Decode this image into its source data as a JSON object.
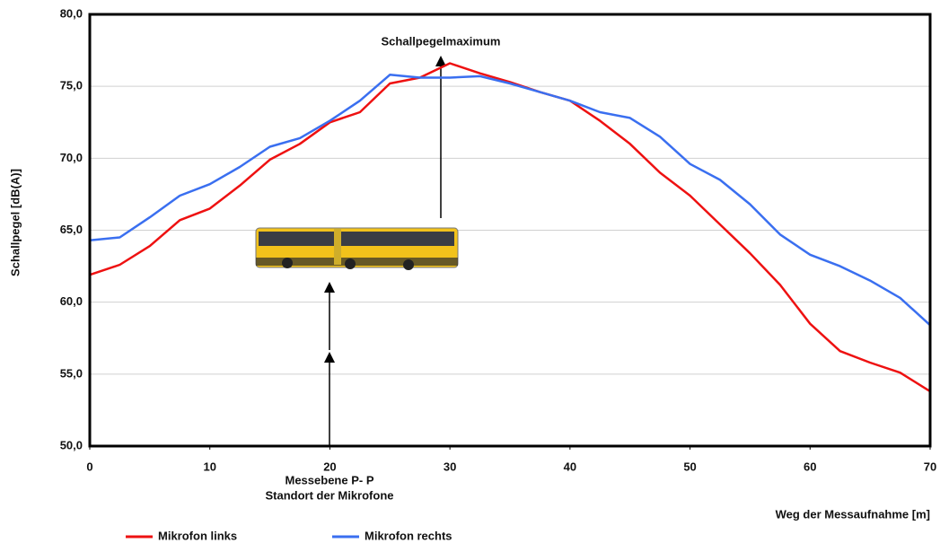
{
  "chart_data": {
    "type": "line",
    "x_label": "Weg der Messaufnahme [m]",
    "y_label": "Schallpegel [dB(A)]",
    "annotations": [
      "Schallpegelmaximum",
      "Messebene P- P",
      "Standort der Mikrofone"
    ],
    "x": [
      0,
      2.5,
      5,
      7.5,
      10,
      12.5,
      15,
      17.5,
      20,
      22.5,
      25,
      27.5,
      30,
      32.5,
      35,
      37.5,
      40,
      42.5,
      45,
      47.5,
      50,
      52.5,
      55,
      57.5,
      60,
      62.5,
      65,
      67.5,
      70
    ],
    "series": [
      {
        "name": "Mikrofon links",
        "color": "#ee1111",
        "values": [
          61.9,
          62.6,
          63.9,
          65.7,
          66.5,
          68.1,
          69.9,
          71.0,
          72.5,
          73.2,
          75.2,
          75.6,
          76.6,
          75.9,
          75.3,
          74.6,
          74.0,
          72.6,
          71.0,
          69.0,
          67.4,
          65.4,
          63.4,
          61.2,
          58.5,
          56.6,
          55.8,
          55.1,
          53.8
        ]
      },
      {
        "name": "Mikrofon rechts",
        "color": "#3a6ff0",
        "values": [
          64.3,
          64.5,
          65.9,
          67.4,
          68.2,
          69.4,
          70.8,
          71.4,
          72.6,
          74.0,
          75.8,
          75.6,
          75.6,
          75.7,
          75.2,
          74.6,
          74.0,
          73.2,
          72.8,
          71.5,
          69.6,
          68.5,
          66.8,
          64.7,
          63.3,
          62.5,
          61.5,
          60.3,
          58.4
        ]
      }
    ],
    "xlim": [
      0,
      70
    ],
    "xticks": [
      0,
      10,
      20,
      30,
      40,
      50,
      60,
      70
    ],
    "ylim": [
      50,
      80
    ],
    "yticks": [
      {
        "value": 50,
        "label": "50,0"
      },
      {
        "value": 55,
        "label": "55,0"
      },
      {
        "value": 60,
        "label": "60,0"
      },
      {
        "value": 65,
        "label": "65,0"
      },
      {
        "value": 70,
        "label": "70,0"
      },
      {
        "value": 75,
        "label": "75,0"
      },
      {
        "value": 80,
        "label": "80,0"
      }
    ],
    "grid": true,
    "legend": "bottom"
  }
}
